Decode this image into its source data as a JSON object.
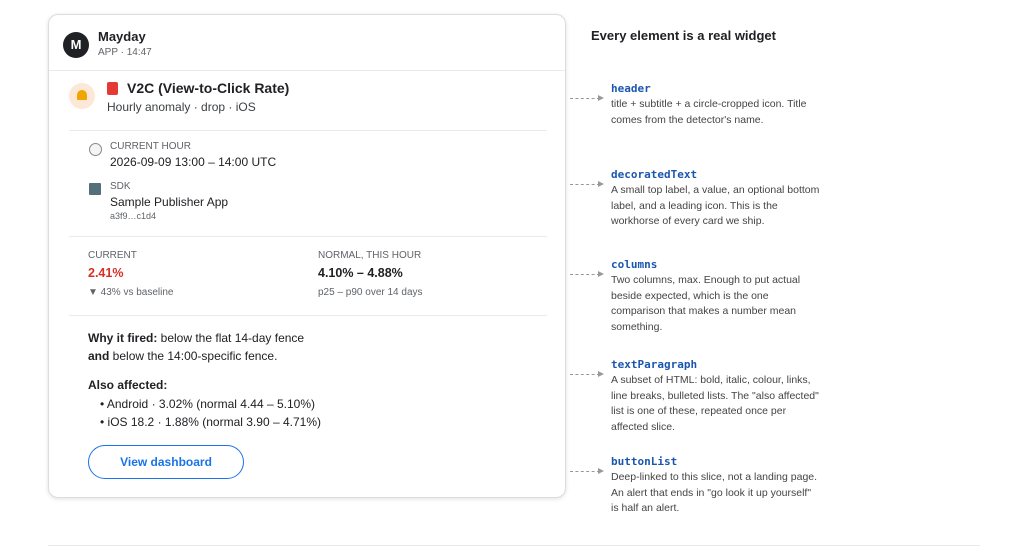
{
  "message": {
    "avatar": "M",
    "sender": "Mayday",
    "meta": "APP · 14:47"
  },
  "header": {
    "title": "V2C (View-to-Click Rate)",
    "subtitle": "Hourly anomaly · drop · iOS"
  },
  "decorated": [
    {
      "top": "CURRENT HOUR",
      "value": "2026-09-09 13:00 – 14:00 UTC"
    },
    {
      "top": "SDK",
      "value": "Sample Publisher App",
      "bottom": "a3f9…c1d4"
    }
  ],
  "columns": [
    {
      "label": "CURRENT",
      "value": "2.41%",
      "note": "▼ 43% vs baseline"
    },
    {
      "label": "NORMAL, THIS HOUR",
      "value": "4.10% – 4.88%",
      "note": "p25 – p90 over 14 days"
    }
  ],
  "paragraph": {
    "why_bold": "Why it fired:",
    "why_text": " below the flat 14-day fence",
    "and_bold": "and",
    "and_text": " below the 14:00-specific fence.",
    "also": "Also affected:",
    "items": [
      "• Android · 3.02% (normal 4.44 – 5.10%)",
      "• iOS 18.2 · 1.88% (normal 3.90 – 4.71%)"
    ]
  },
  "button": "View dashboard",
  "aside": {
    "title": "Every element is a real widget",
    "notes": [
      {
        "name": "header",
        "text": "title + subtitle + a circle-cropped icon. Title comes from the detector's name."
      },
      {
        "name": "decoratedText",
        "text": "A small top label, a value, an optional bottom label, and a leading icon. This is the workhorse of every card we ship."
      },
      {
        "name": "columns",
        "text": "Two columns, max. Enough to put actual beside expected, which is the one comparison that makes a number mean something."
      },
      {
        "name": "textParagraph",
        "text": "A subset of HTML: bold, italic, colour, links, line breaks, bulleted lists. The \"also affected\" list is one of these, repeated once per affected slice."
      },
      {
        "name": "buttonList",
        "text": "Deep-linked to this slice, not a landing page. An alert that ends in \"go look it up yourself\" is half an alert."
      }
    ]
  }
}
